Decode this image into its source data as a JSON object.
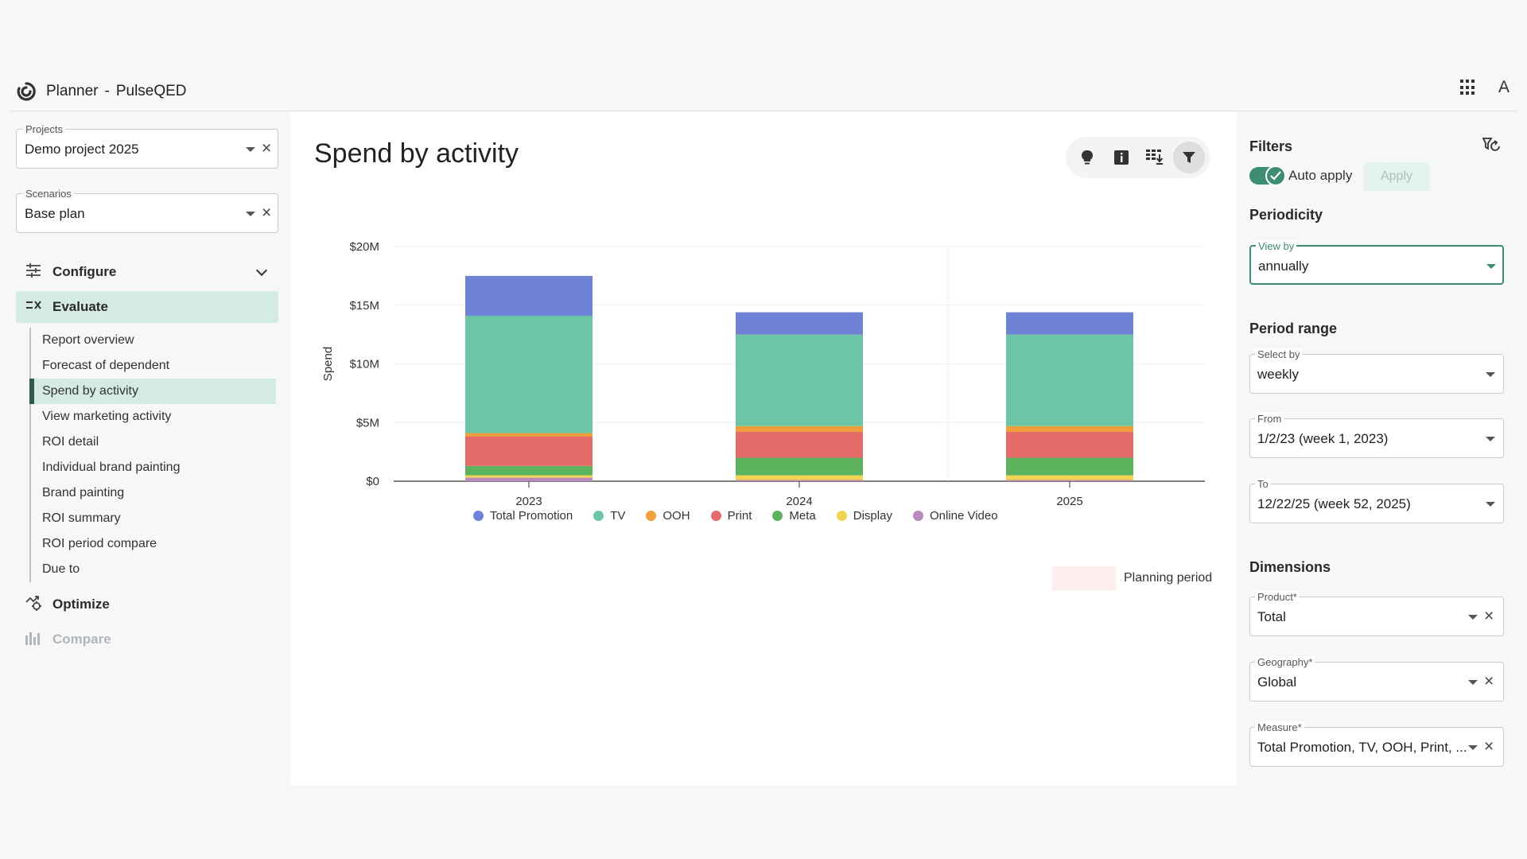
{
  "app": {
    "name": "Planner",
    "separator": "-",
    "project_brand": "PulseQED",
    "avatar_letter": "A"
  },
  "sidebar": {
    "projects": {
      "label": "Projects",
      "value": "Demo project 2025"
    },
    "scenarios": {
      "label": "Scenarios",
      "value": "Base plan"
    },
    "sections": [
      {
        "label": "Configure",
        "icon": "sliders-icon"
      },
      {
        "label": "Evaluate",
        "icon": "evaluate-icon"
      },
      {
        "label": "Optimize",
        "icon": "optimize-icon"
      },
      {
        "label": "Compare",
        "icon": "compare-icon"
      }
    ],
    "evaluate_items": [
      "Report overview",
      "Forecast of dependent",
      "Spend by activity",
      "View marketing activity",
      "ROI detail",
      "Individual brand painting",
      "Brand painting",
      "ROI summary",
      "ROI period compare",
      "Due to"
    ]
  },
  "main": {
    "title": "Spend by activity",
    "toolbar": [
      "lightbulb-icon",
      "info-icon",
      "download-table-icon",
      "filter-icon"
    ],
    "planning_period_label": "Planning period"
  },
  "chart_data": {
    "type": "bar",
    "stacked": true,
    "title": "",
    "xlabel": "",
    "ylabel": "Spend",
    "ylim": [
      0,
      20
    ],
    "y_unit": "$M",
    "yticks": [
      "$0",
      "$5M",
      "$10M",
      "$15M",
      "$20M"
    ],
    "categories": [
      "2023",
      "2024",
      "2025"
    ],
    "series": [
      {
        "name": "Online Video",
        "color": "#b889bd",
        "values": [
          0.3,
          0.1,
          0.1
        ]
      },
      {
        "name": "Display",
        "color": "#f1d34f",
        "values": [
          0.2,
          0.4,
          0.4
        ]
      },
      {
        "name": "Meta",
        "color": "#5cb25d",
        "values": [
          0.8,
          1.5,
          1.5
        ]
      },
      {
        "name": "Print",
        "color": "#e56a6a",
        "values": [
          2.5,
          2.2,
          2.2
        ]
      },
      {
        "name": "OOH",
        "color": "#f0a03a",
        "values": [
          0.3,
          0.5,
          0.5
        ]
      },
      {
        "name": "TV",
        "color": "#6cc5a7",
        "values": [
          10.0,
          7.8,
          7.8
        ]
      },
      {
        "name": "Total Promotion",
        "color": "#6e83d6",
        "values": [
          3.4,
          1.9,
          1.9
        ]
      }
    ],
    "legend_order": [
      "Total Promotion",
      "TV",
      "OOH",
      "Print",
      "Meta",
      "Display",
      "Online Video"
    ]
  },
  "filters": {
    "title": "Filters",
    "auto_apply_label": "Auto apply",
    "auto_apply_on": true,
    "apply_label": "Apply",
    "periodicity_heading": "Periodicity",
    "view_by": {
      "label": "View by",
      "value": "annually"
    },
    "period_range_heading": "Period range",
    "select_by": {
      "label": "Select by",
      "value": "weekly"
    },
    "from": {
      "label": "From",
      "value": "1/2/23 (week 1, 2023)"
    },
    "to": {
      "label": "To",
      "value": "12/22/25 (week 52, 2025)"
    },
    "dimensions_heading": "Dimensions",
    "product": {
      "label": "Product*",
      "value": "Total"
    },
    "geography": {
      "label": "Geography*",
      "value": "Global"
    },
    "measure": {
      "label": "Measure*",
      "value": "Total Promotion, TV, OOH, Print, ..."
    }
  }
}
